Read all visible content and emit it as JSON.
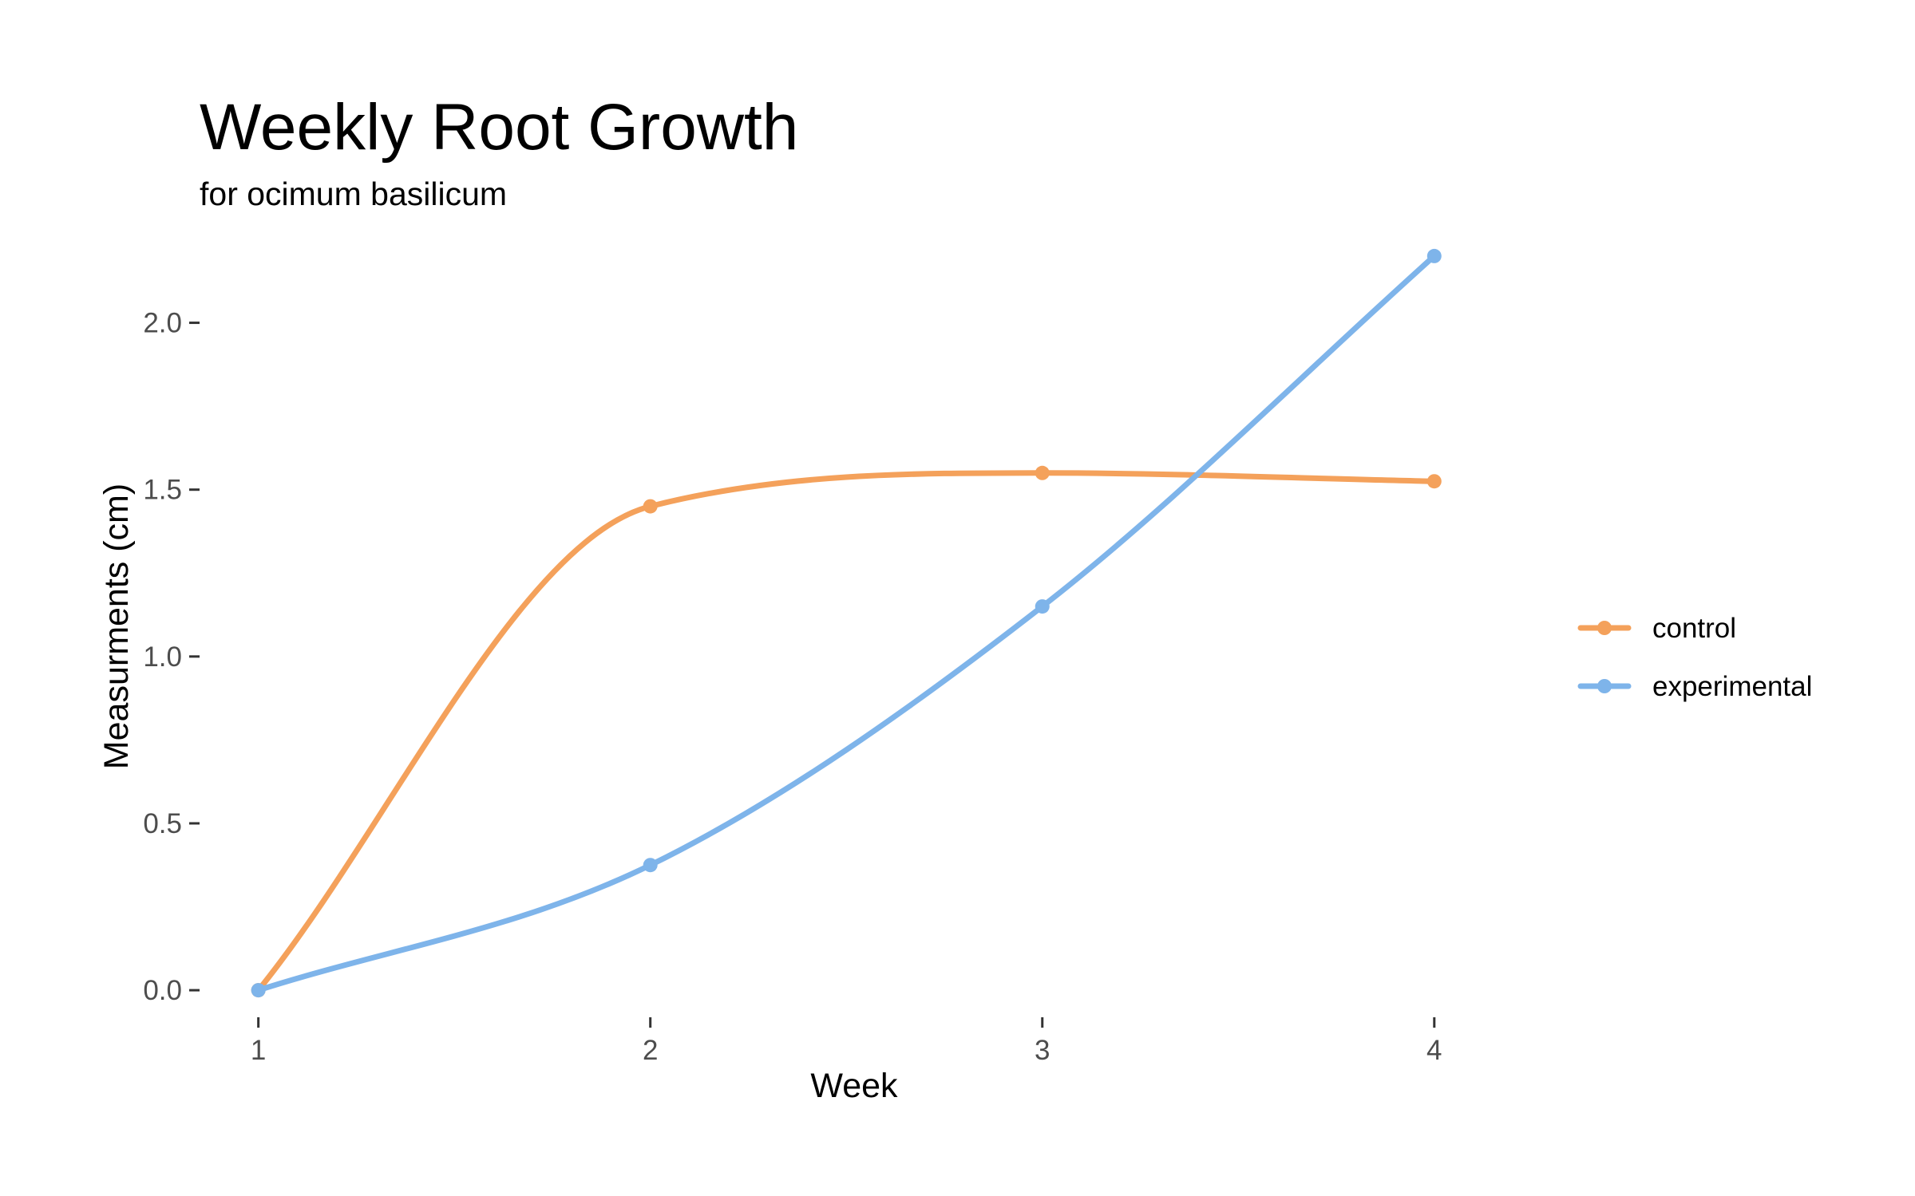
{
  "chart_data": {
    "type": "line",
    "title": "Weekly Root Growth",
    "subtitle": "for  ocimum basilicum",
    "xlabel": "Week",
    "ylabel": "Measurments (cm)",
    "x": [
      1,
      2,
      3,
      4
    ],
    "x_tick_labels": [
      "1",
      "2",
      "3",
      "4"
    ],
    "y_ticks": [
      0.0,
      0.5,
      1.0,
      1.5,
      2.0
    ],
    "y_tick_labels": [
      "0.0",
      "0.5",
      "1.0",
      "1.5",
      "2.0"
    ],
    "xlim": [
      0.85,
      4.2
    ],
    "ylim": [
      -0.05,
      2.25
    ],
    "smooth": true,
    "grid": false,
    "legend_position": "right",
    "series": [
      {
        "name": "control",
        "color": "#F4A15B",
        "values": [
          0.0,
          1.45,
          1.55,
          1.525
        ]
      },
      {
        "name": "experimental",
        "color": "#7EB4EA",
        "values": [
          0.0,
          0.375,
          1.15,
          2.2
        ]
      }
    ]
  }
}
